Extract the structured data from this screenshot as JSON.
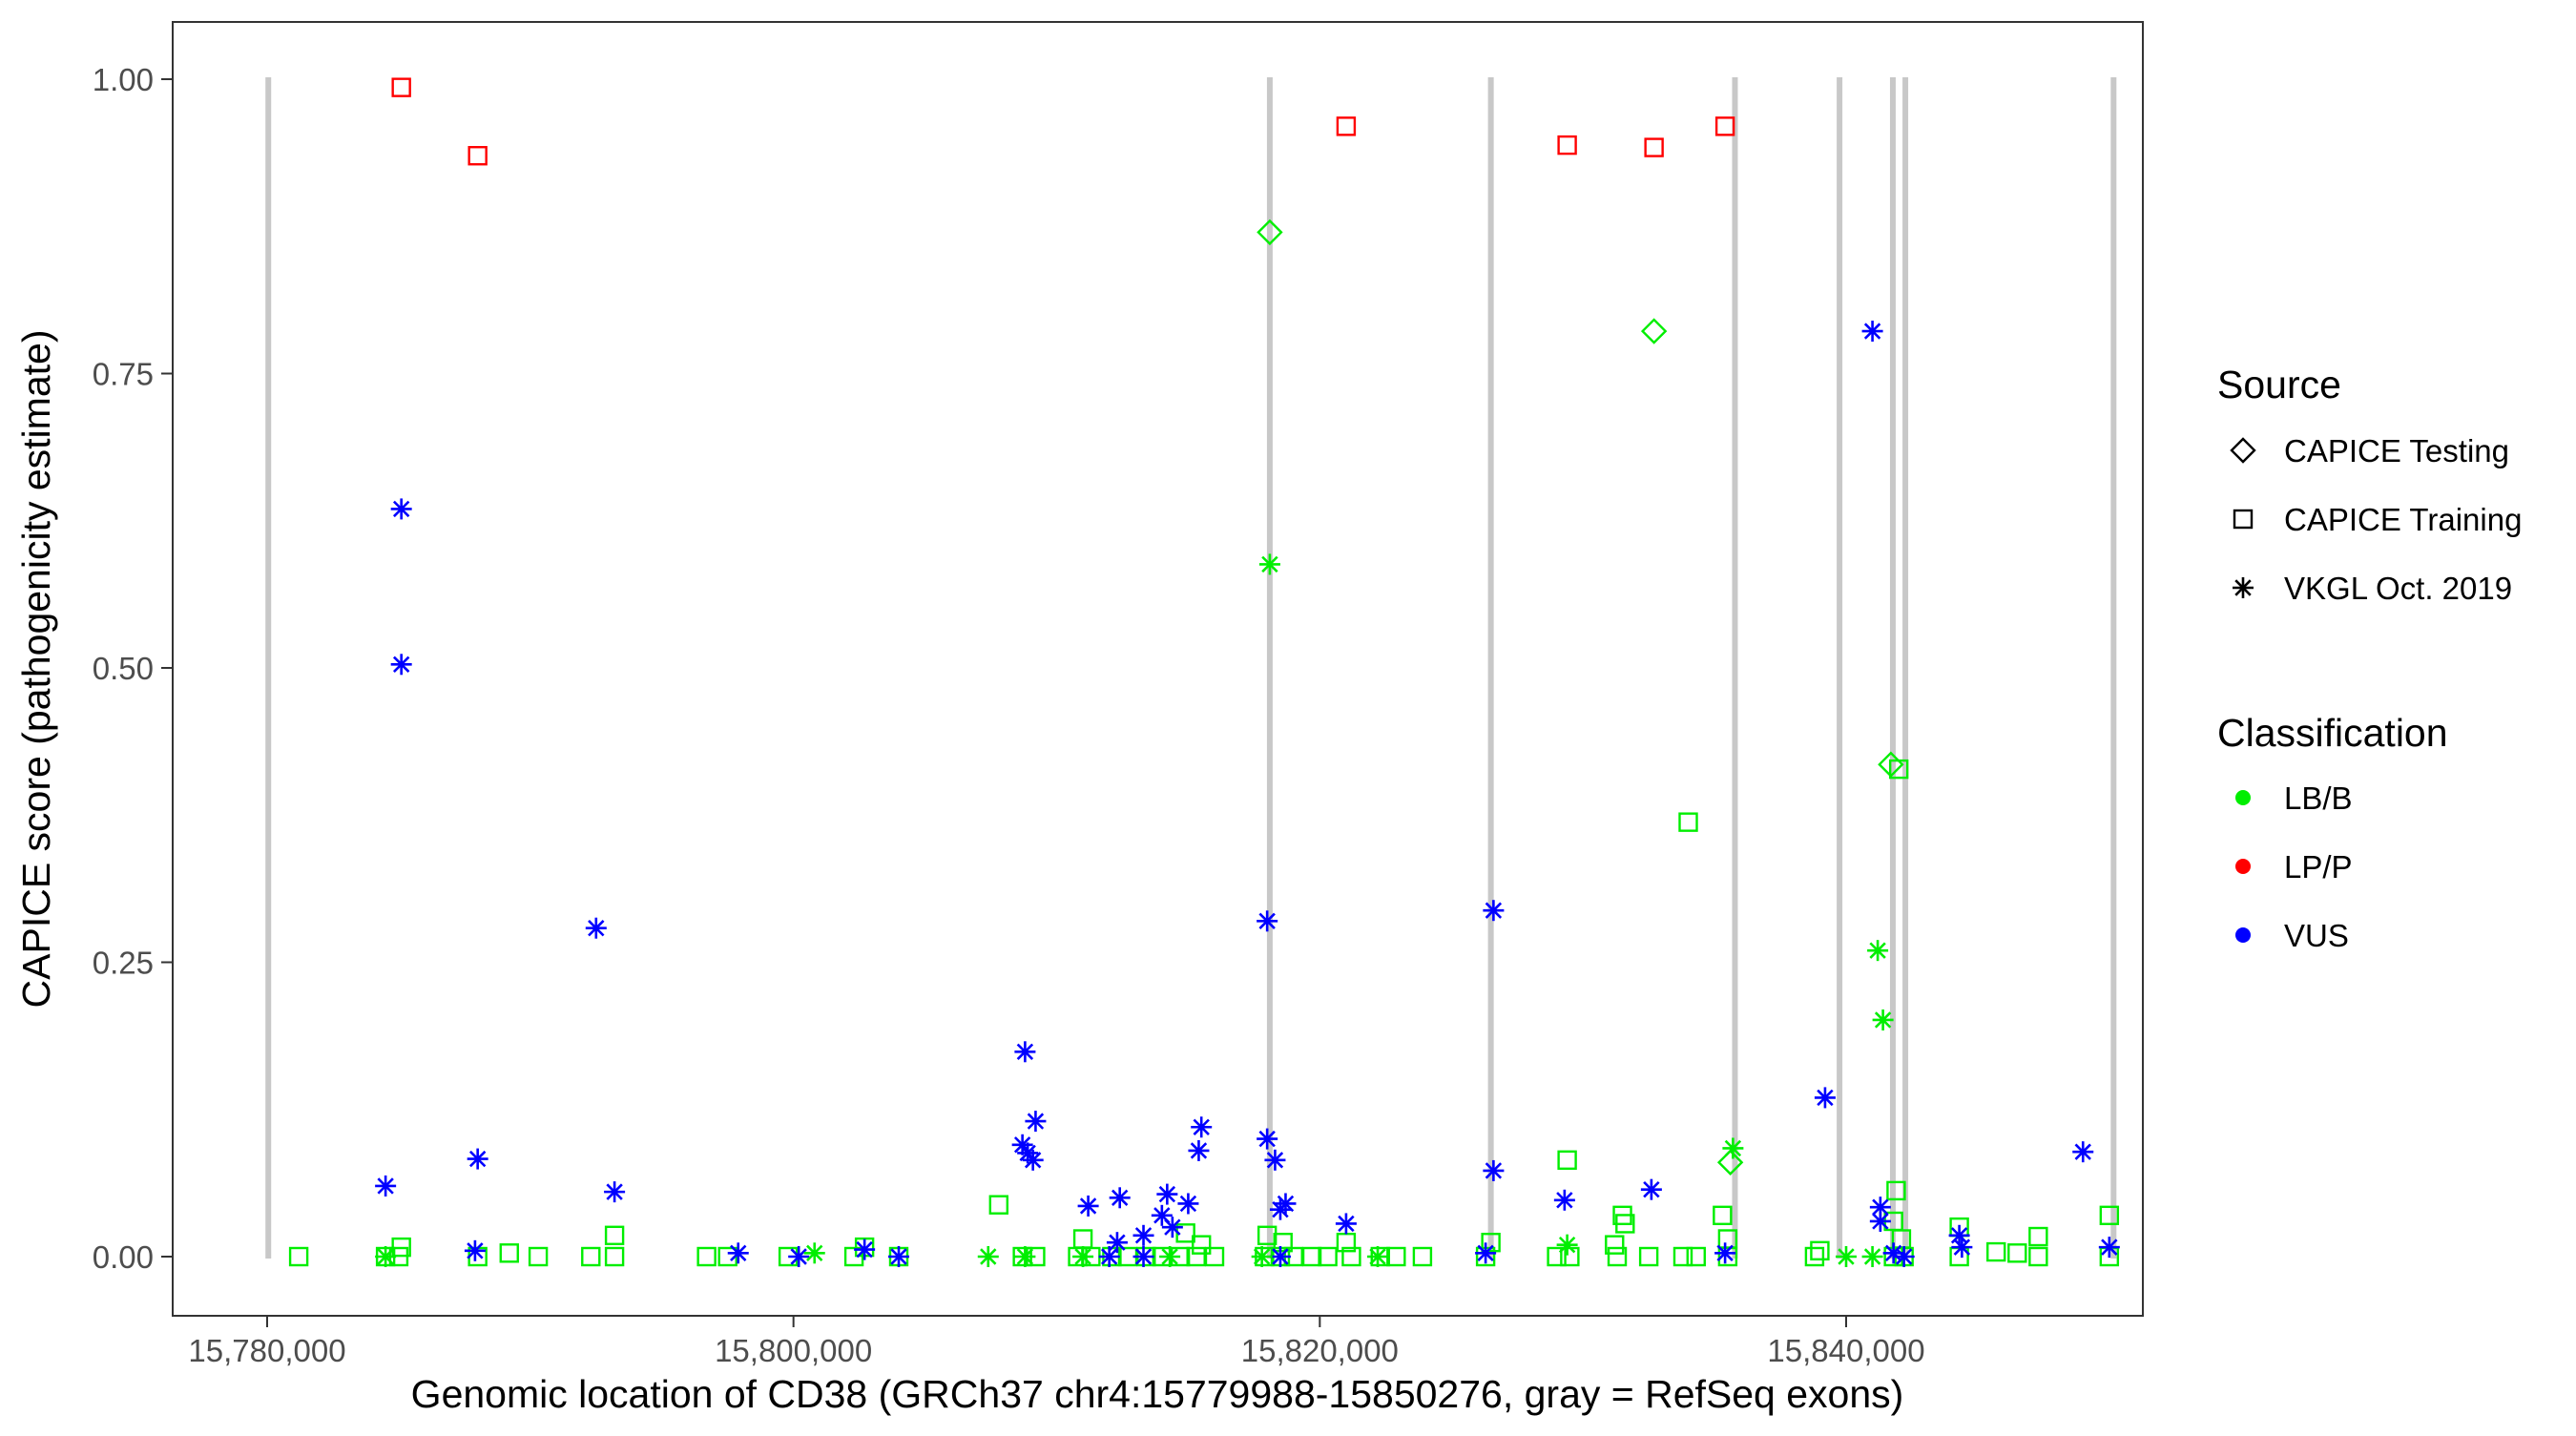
{
  "chart_data": {
    "type": "scatter",
    "title": "",
    "xlabel": "Genomic location of CD38 (GRCh37 chr4:15779988-15850276, gray = RefSeq exons)",
    "ylabel": "CAPICE score (pathogenicity estimate)",
    "xlim": [
      15775000,
      15852000
    ],
    "ylim": [
      -0.05,
      1.05
    ],
    "x_ticks": [
      15780000,
      15800000,
      15820000,
      15840000
    ],
    "x_tick_labels": [
      "15,780,000",
      "15,800,000",
      "15,820,000",
      "15,840,000"
    ],
    "y_ticks": [
      0,
      0.25,
      0.5,
      0.75,
      1.0
    ],
    "y_tick_labels": [
      "0.00",
      "0.25",
      "0.50",
      "0.75",
      "1.00"
    ],
    "grid": false,
    "legend_placement": "right",
    "exon_color": "#c8c8c8",
    "exons": [
      [
        15779988,
        15780100
      ],
      [
        15818000,
        15818200
      ],
      [
        15826400,
        15826600
      ],
      [
        15835700,
        15835850
      ],
      [
        15839700,
        15839800
      ],
      [
        15841700,
        15841850
      ],
      [
        15842200,
        15842300
      ],
      [
        15850050,
        15850276
      ]
    ],
    "legend": {
      "source_title": "Source",
      "source_items": [
        {
          "label": "CAPICE Testing",
          "shape": "diamond"
        },
        {
          "label": "CAPICE Training",
          "shape": "square"
        },
        {
          "label": "VKGL Oct. 2019",
          "shape": "asterisk"
        }
      ],
      "class_title": "Classification",
      "class_items": [
        {
          "label": "LB/B",
          "color": "#00ee00"
        },
        {
          "label": "LP/P",
          "color": "#ff0000"
        },
        {
          "label": "VUS",
          "color": "#0000ff"
        }
      ]
    },
    "series": [
      {
        "name": "CAPICE Training",
        "shape": "square",
        "points": [
          [
            15785100,
            0.993,
            "LP/P"
          ],
          [
            15788000,
            0.935,
            "LP/P"
          ],
          [
            15821000,
            0.96,
            "LP/P"
          ],
          [
            15829400,
            0.944,
            "LP/P"
          ],
          [
            15832700,
            0.942,
            "LP/P"
          ],
          [
            15835400,
            0.96,
            "LP/P"
          ],
          [
            15834000,
            0.369,
            "LB/B"
          ],
          [
            15842000,
            0.414,
            "LB/B"
          ],
          [
            15829400,
            0.082,
            "LB/B"
          ],
          [
            15807800,
            0.044,
            "LB/B"
          ],
          [
            15831500,
            0.035,
            "LB/B"
          ],
          [
            15831600,
            0.028,
            "LB/B"
          ],
          [
            15835300,
            0.035,
            "LB/B"
          ],
          [
            15841900,
            0.056,
            "LB/B"
          ],
          [
            15841800,
            0.03,
            "LB/B"
          ],
          [
            15844300,
            0.025,
            "LB/B"
          ],
          [
            15850000,
            0.035,
            "LB/B"
          ],
          [
            15793200,
            0.018,
            "LB/B"
          ],
          [
            15811000,
            0.015,
            "LB/B"
          ],
          [
            15814900,
            0.02,
            "LB/B"
          ],
          [
            15818000,
            0.018,
            "LB/B"
          ],
          [
            15847300,
            0.017,
            "LB/B"
          ],
          [
            15842100,
            0.015,
            "LB/B"
          ],
          [
            15835500,
            0.015,
            "LB/B"
          ],
          [
            15826500,
            0.012,
            "LB/B"
          ],
          [
            15815500,
            0.01,
            "LB/B"
          ],
          [
            15818600,
            0.012,
            "LB/B"
          ],
          [
            15821000,
            0.012,
            "LB/B"
          ],
          [
            15831200,
            0.01,
            "LB/B"
          ],
          [
            15802700,
            0.008,
            "LB/B"
          ],
          [
            15785100,
            0.008,
            "LB/B"
          ],
          [
            15839000,
            0.005,
            "LB/B"
          ],
          [
            15845700,
            0.004,
            "LB/B"
          ],
          [
            15846500,
            0.003,
            "LB/B"
          ],
          [
            15789200,
            0.003,
            "LB/B"
          ],
          [
            15781200,
            0.0,
            "LB/B"
          ],
          [
            15784500,
            0.0,
            "LB/B"
          ],
          [
            15785000,
            0.0,
            "LB/B"
          ],
          [
            15788000,
            0.0,
            "LB/B"
          ],
          [
            15790300,
            0.0,
            "LB/B"
          ],
          [
            15792300,
            0.0,
            "LB/B"
          ],
          [
            15793200,
            0.0,
            "LB/B"
          ],
          [
            15796700,
            0.0,
            "LB/B"
          ],
          [
            15797500,
            0.0,
            "LB/B"
          ],
          [
            15799800,
            0.0,
            "LB/B"
          ],
          [
            15802300,
            0.0,
            "LB/B"
          ],
          [
            15804000,
            0.0,
            "LB/B"
          ],
          [
            15808700,
            0.0,
            "LB/B"
          ],
          [
            15809200,
            0.0,
            "LB/B"
          ],
          [
            15810800,
            0.0,
            "LB/B"
          ],
          [
            15811300,
            0.0,
            "LB/B"
          ],
          [
            15812100,
            0.0,
            "LB/B"
          ],
          [
            15812700,
            0.0,
            "LB/B"
          ],
          [
            15813400,
            0.0,
            "LB/B"
          ],
          [
            15814000,
            0.0,
            "LB/B"
          ],
          [
            15814700,
            0.0,
            "LB/B"
          ],
          [
            15815300,
            0.0,
            "LB/B"
          ],
          [
            15816000,
            0.0,
            "LB/B"
          ],
          [
            15817900,
            0.0,
            "LB/B"
          ],
          [
            15818500,
            0.0,
            "LB/B"
          ],
          [
            15819000,
            0.0,
            "LB/B"
          ],
          [
            15819700,
            0.0,
            "LB/B"
          ],
          [
            15820300,
            0.0,
            "LB/B"
          ],
          [
            15821200,
            0.0,
            "LB/B"
          ],
          [
            15822300,
            0.0,
            "LB/B"
          ],
          [
            15822900,
            0.0,
            "LB/B"
          ],
          [
            15823900,
            0.0,
            "LB/B"
          ],
          [
            15826300,
            0.0,
            "LB/B"
          ],
          [
            15829000,
            0.0,
            "LB/B"
          ],
          [
            15829500,
            0.0,
            "LB/B"
          ],
          [
            15831300,
            0.0,
            "LB/B"
          ],
          [
            15832500,
            0.0,
            "LB/B"
          ],
          [
            15833800,
            0.0,
            "LB/B"
          ],
          [
            15834300,
            0.0,
            "LB/B"
          ],
          [
            15835500,
            0.0,
            "LB/B"
          ],
          [
            15838800,
            0.0,
            "LB/B"
          ],
          [
            15841800,
            0.0,
            "LB/B"
          ],
          [
            15842200,
            0.0,
            "LB/B"
          ],
          [
            15844300,
            0.0,
            "LB/B"
          ],
          [
            15847300,
            0.0,
            "LB/B"
          ],
          [
            15850000,
            0.0,
            "LB/B"
          ]
        ]
      },
      {
        "name": "CAPICE Testing",
        "shape": "diamond",
        "points": [
          [
            15818100,
            0.87,
            "LB/B"
          ],
          [
            15832700,
            0.786,
            "LB/B"
          ],
          [
            15841700,
            0.418,
            "LB/B"
          ],
          [
            15835600,
            0.08,
            "LB/B"
          ]
        ]
      },
      {
        "name": "VKGL Oct. 2019",
        "shape": "asterisk",
        "points": [
          [
            15785100,
            0.635,
            "VUS"
          ],
          [
            15785100,
            0.503,
            "VUS"
          ],
          [
            15792500,
            0.279,
            "VUS"
          ],
          [
            15784500,
            0.06,
            "VUS"
          ],
          [
            15788000,
            0.083,
            "VUS"
          ],
          [
            15793200,
            0.055,
            "VUS"
          ],
          [
            15808800,
            0.174,
            "VUS"
          ],
          [
            15809200,
            0.115,
            "VUS"
          ],
          [
            15808700,
            0.095,
            "VUS"
          ],
          [
            15808900,
            0.088,
            "VUS"
          ],
          [
            15809100,
            0.082,
            "VUS"
          ],
          [
            15811200,
            0.043,
            "VUS"
          ],
          [
            15812400,
            0.05,
            "VUS"
          ],
          [
            15814200,
            0.053,
            "VUS"
          ],
          [
            15815000,
            0.045,
            "VUS"
          ],
          [
            15814000,
            0.035,
            "VUS"
          ],
          [
            15814400,
            0.025,
            "VUS"
          ],
          [
            15813300,
            0.018,
            "VUS"
          ],
          [
            15812300,
            0.012,
            "VUS"
          ],
          [
            15815500,
            0.11,
            "VUS"
          ],
          [
            15815400,
            0.09,
            "VUS"
          ],
          [
            15818000,
            0.285,
            "VUS"
          ],
          [
            15818000,
            0.1,
            "VUS"
          ],
          [
            15818300,
            0.082,
            "VUS"
          ],
          [
            15818700,
            0.045,
            "VUS"
          ],
          [
            15818500,
            0.04,
            "VUS"
          ],
          [
            15821000,
            0.028,
            "VUS"
          ],
          [
            15826600,
            0.294,
            "VUS"
          ],
          [
            15826600,
            0.073,
            "VUS"
          ],
          [
            15829300,
            0.048,
            "VUS"
          ],
          [
            15832600,
            0.057,
            "VUS"
          ],
          [
            15839200,
            0.135,
            "VUS"
          ],
          [
            15841000,
            0.786,
            "VUS"
          ],
          [
            15841300,
            0.042,
            "VUS"
          ],
          [
            15841300,
            0.03,
            "VUS"
          ],
          [
            15849000,
            0.089,
            "VUS"
          ],
          [
            15844300,
            0.018,
            "VUS"
          ],
          [
            15844400,
            0.008,
            "VUS"
          ],
          [
            15850000,
            0.008,
            "VUS"
          ],
          [
            15787900,
            0.005,
            "VUS"
          ],
          [
            15797900,
            0.003,
            "VUS"
          ],
          [
            15800200,
            0.0,
            "VUS"
          ],
          [
            15802700,
            0.006,
            "VUS"
          ],
          [
            15804000,
            0.0,
            "VUS"
          ],
          [
            15812000,
            0.0,
            "VUS"
          ],
          [
            15813300,
            0.0,
            "VUS"
          ],
          [
            15818500,
            0.0,
            "VUS"
          ],
          [
            15826300,
            0.003,
            "VUS"
          ],
          [
            15835400,
            0.003,
            "VUS"
          ],
          [
            15841800,
            0.003,
            "VUS"
          ],
          [
            15842200,
            0.0,
            "VUS"
          ],
          [
            15818100,
            0.588,
            "LB/B"
          ],
          [
            15841200,
            0.26,
            "LB/B"
          ],
          [
            15841400,
            0.201,
            "LB/B"
          ],
          [
            15835700,
            0.092,
            "LB/B"
          ],
          [
            15784500,
            0.0,
            "LB/B"
          ],
          [
            15800800,
            0.003,
            "LB/B"
          ],
          [
            15807400,
            0.0,
            "LB/B"
          ],
          [
            15808800,
            0.0,
            "LB/B"
          ],
          [
            15811000,
            0.0,
            "LB/B"
          ],
          [
            15814300,
            0.0,
            "LB/B"
          ],
          [
            15817800,
            0.0,
            "LB/B"
          ],
          [
            15822200,
            0.0,
            "LB/B"
          ],
          [
            15829400,
            0.01,
            "LB/B"
          ],
          [
            15840000,
            0.0,
            "LB/B"
          ],
          [
            15841000,
            0.0,
            "LB/B"
          ]
        ]
      }
    ]
  }
}
